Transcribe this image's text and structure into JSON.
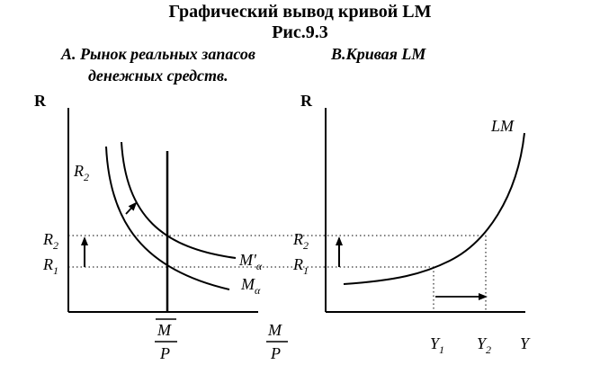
{
  "title": "Графический вывод кривой LM",
  "figure_number": "Рис.9.3",
  "panel_a": {
    "title_line1": "А. Рынок реальных запасов",
    "title_line2": "денежных средств.",
    "y_axis": "R",
    "r2": "R",
    "r2_sub": "2",
    "r1": "R",
    "r1_sub": "1",
    "curve_r2": "R",
    "curve_r2_sub": "2",
    "m_prime_a": "M'",
    "m_prime_a_sub": "α",
    "m_a": "M",
    "m_a_sub": "α",
    "supply_num": "M",
    "supply_den": "P",
    "x_num": "M",
    "x_den": "P"
  },
  "panel_b": {
    "title": "В.Кривая LM",
    "y_axis": "R",
    "r2": "R",
    "r2_sub": "2",
    "r1": "R",
    "r1_sub": "1",
    "curve": "LM",
    "y1": "Y",
    "y1_sub": "1",
    "y2": "Y",
    "y2_sub": "2",
    "x_axis": "Y"
  }
}
